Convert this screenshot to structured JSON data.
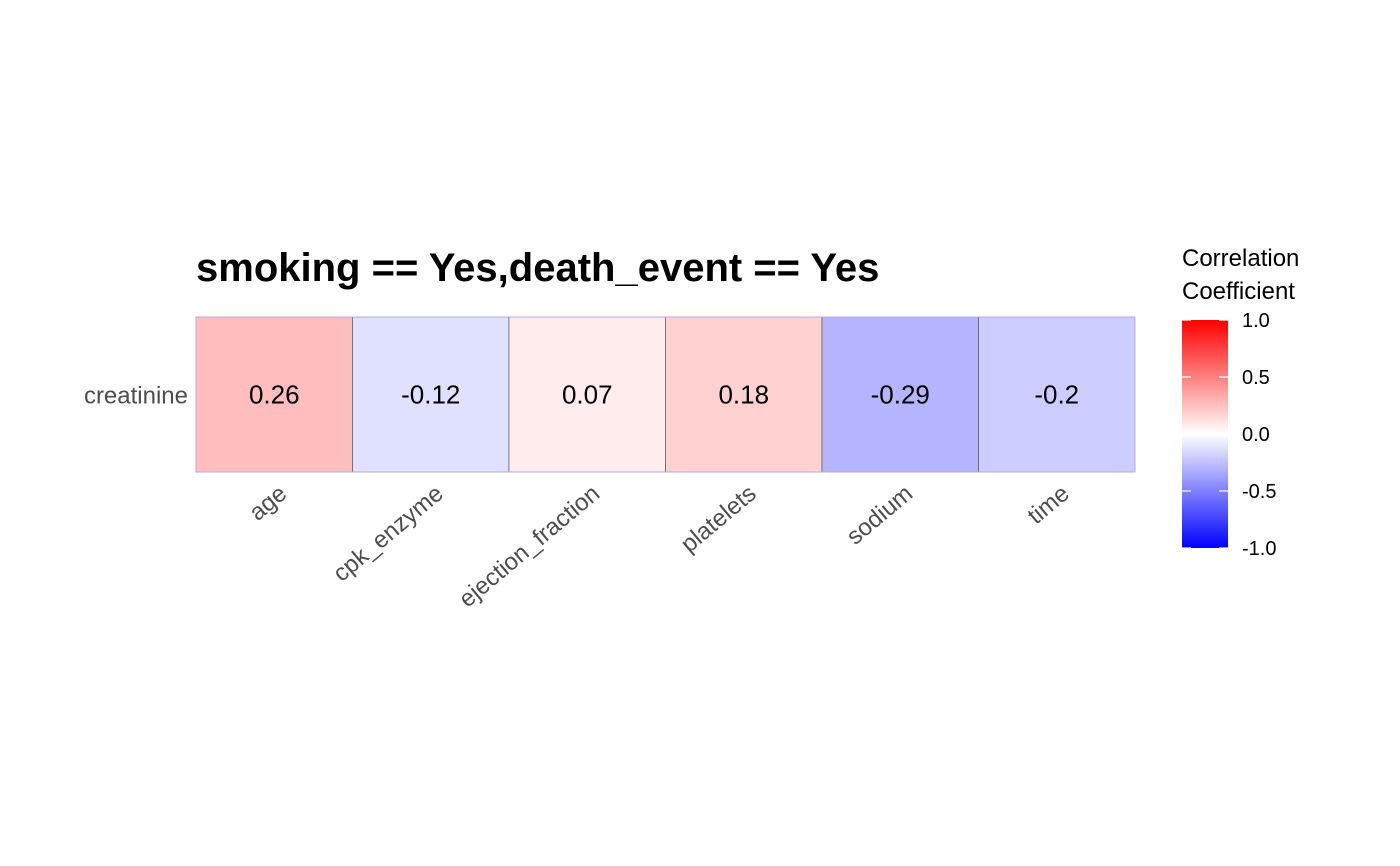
{
  "chart_data": {
    "type": "heatmap",
    "title": "smoking == Yes,death_event == Yes",
    "rows": [
      "creatinine"
    ],
    "columns": [
      "age",
      "cpk_enzyme",
      "ejection_fraction",
      "platelets",
      "sodium",
      "time"
    ],
    "values": [
      [
        0.26,
        -0.12,
        0.07,
        0.18,
        -0.29,
        -0.2
      ]
    ],
    "value_labels": [
      [
        "0.26",
        "-0.12",
        "0.07",
        "0.18",
        "-0.29",
        "-0.2"
      ]
    ],
    "color_scale": {
      "low": "#0000ff",
      "mid": "#ffffff",
      "high": "#ff0000",
      "limits": [
        -1,
        1
      ]
    },
    "legend": {
      "title_lines": [
        "Correlation",
        "Coefficient"
      ],
      "tick_labels": [
        "1.0",
        "0.5",
        "0.0",
        "-0.5",
        "-1.0"
      ],
      "tick_values": [
        1,
        0.5,
        0,
        -0.5,
        -1
      ],
      "placement": "right"
    }
  }
}
